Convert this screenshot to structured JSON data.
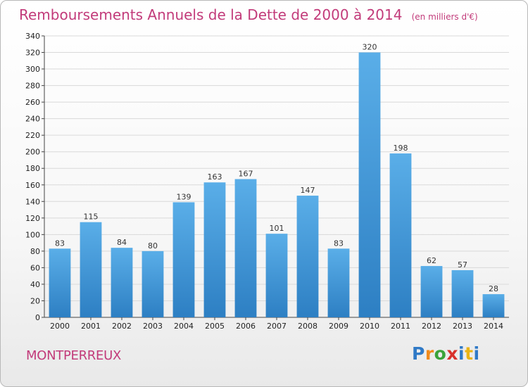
{
  "title": "Remboursements Annuels de la Dette de 2000 à 2014",
  "unit_note": "(en milliers d'€)",
  "city": "MONTPERREUX",
  "brand": {
    "letters": [
      "P",
      "r",
      "o",
      "x",
      "i",
      "t",
      "i"
    ]
  },
  "colors": {
    "bar_top": "#5aaee8",
    "bar_bottom": "#2d7fc3",
    "title": "#c23b7a",
    "grid": "#d9d9d9"
  },
  "chart_data": {
    "type": "bar",
    "categories": [
      "2000",
      "2001",
      "2002",
      "2003",
      "2004",
      "2005",
      "2006",
      "2007",
      "2008",
      "2009",
      "2010",
      "2011",
      "2012",
      "2013",
      "2014"
    ],
    "values": [
      83,
      115,
      84,
      80,
      139,
      163,
      167,
      101,
      147,
      83,
      320,
      198,
      62,
      57,
      28
    ],
    "ylim": [
      0,
      340
    ],
    "yticks": [
      0,
      20,
      40,
      60,
      80,
      100,
      120,
      140,
      160,
      180,
      200,
      220,
      240,
      260,
      280,
      300,
      320,
      340
    ],
    "grid": true,
    "data_labels": true
  }
}
